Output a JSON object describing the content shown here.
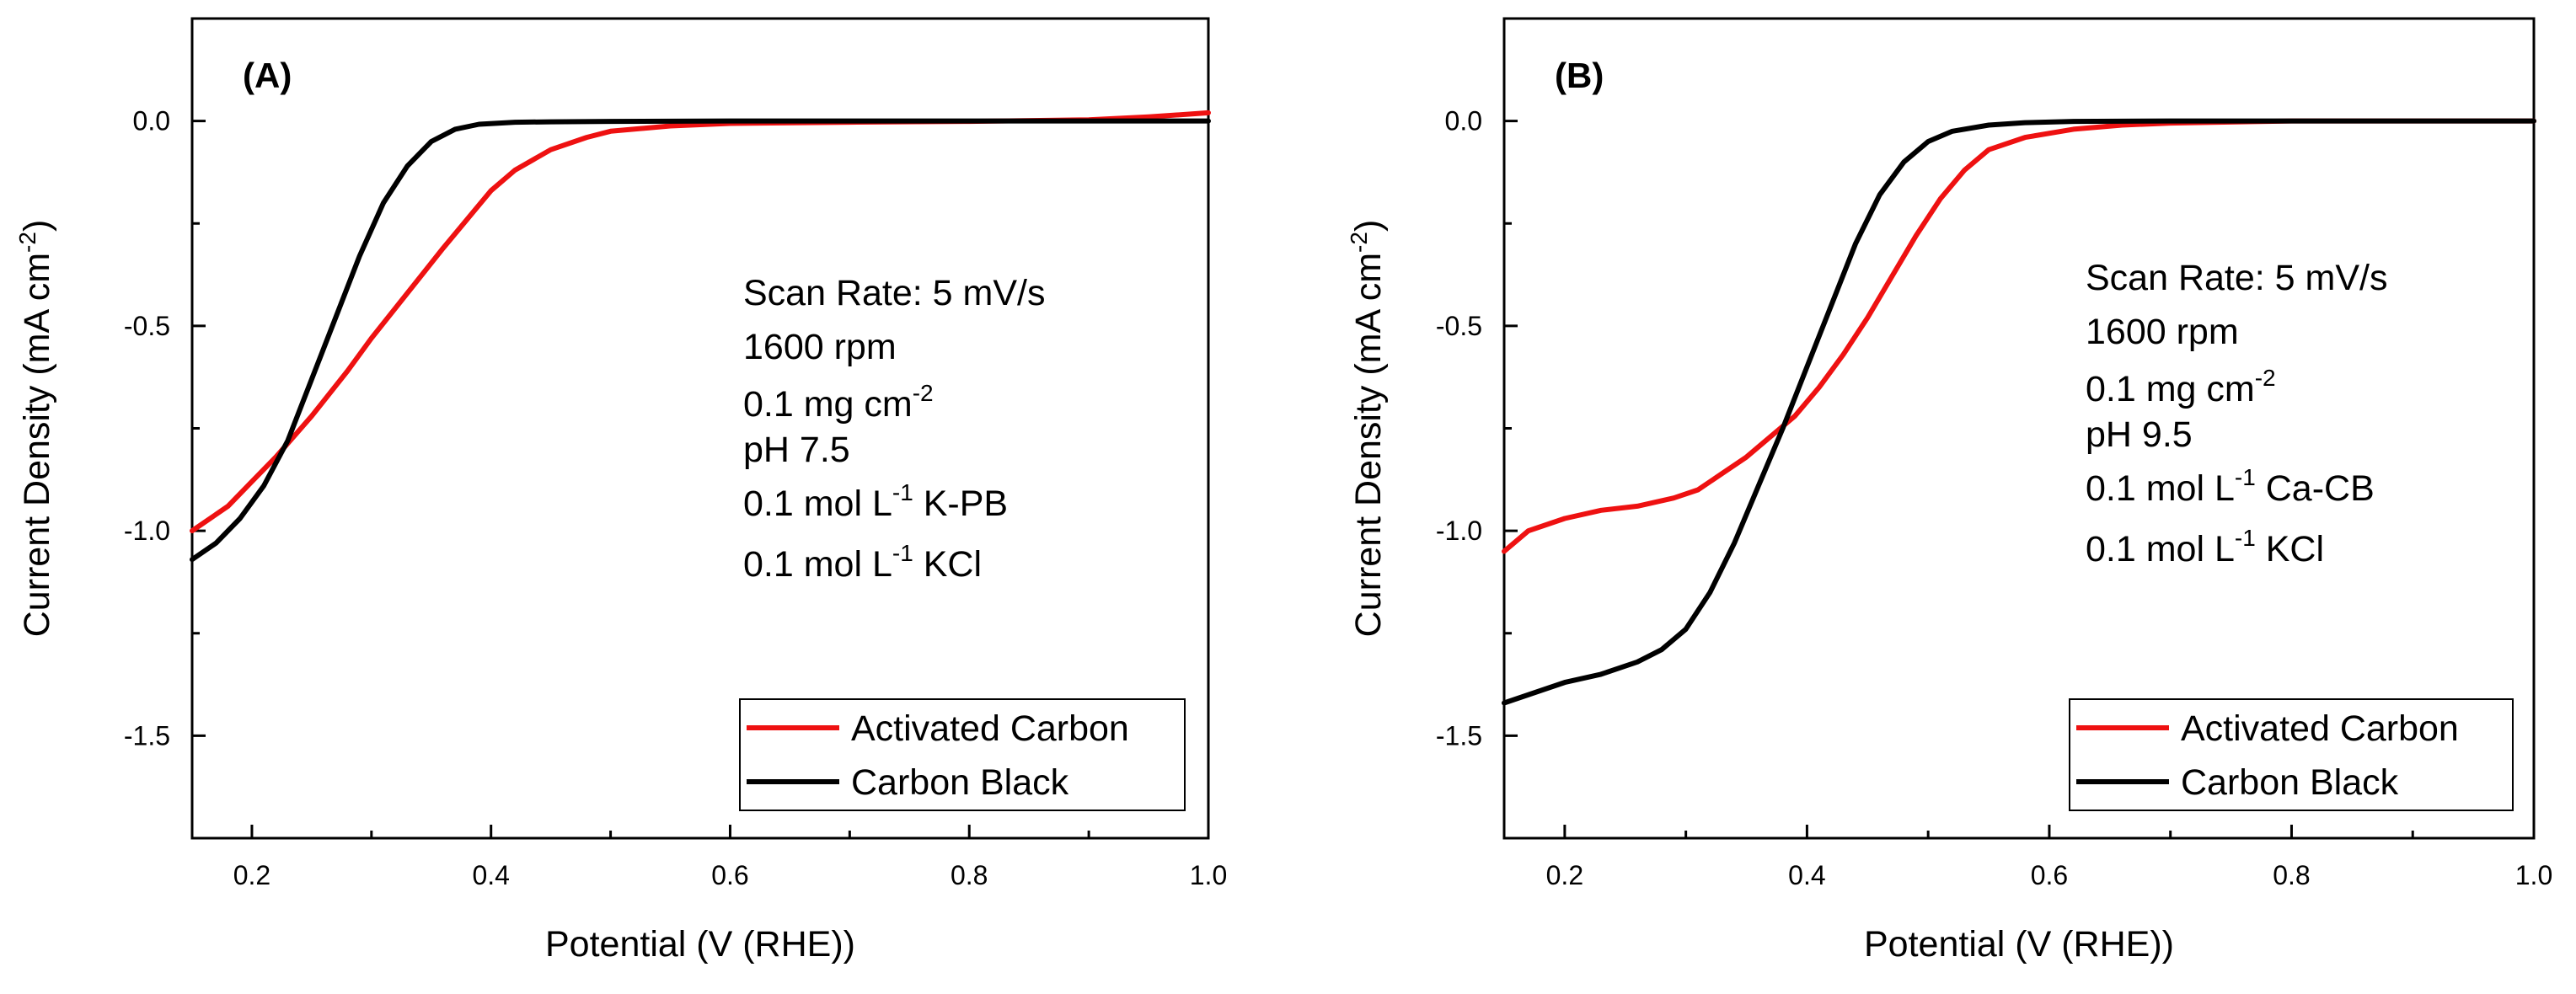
{
  "chart_data": [
    {
      "type": "line",
      "panel_label": "(A)",
      "xlabel": "Potential (V (RHE))",
      "ylabel": "Current Density (mA cm",
      "ylabel_sup": "-2",
      "ylabel_end": ")",
      "xlim": [
        0.15,
        1.0
      ],
      "ylim": [
        -1.75,
        0.25
      ],
      "xticks": [
        "0.2",
        "0.4",
        "0.6",
        "0.8",
        "1.0"
      ],
      "yticks": [
        "0.0",
        "-0.5",
        "-1.0",
        "-1.5"
      ],
      "grid": false,
      "annotations": [
        {
          "text": "Scan Rate: 5 mV/s"
        },
        {
          "text": "1600 rpm"
        },
        {
          "text": "0.1 mg cm",
          "sup": "-2"
        },
        {
          "text": "pH 7.5"
        },
        {
          "text": "0.1 mol L",
          "sup": "-1",
          "after": " K-PB"
        },
        {
          "text": "0.1 mol L",
          "sup": "-1",
          "after": "  KCl"
        }
      ],
      "legend": {
        "position": "bottom-right"
      },
      "series": [
        {
          "name": "Activated Carbon",
          "color": "#ee1111",
          "x": [
            0.15,
            0.18,
            0.2,
            0.22,
            0.25,
            0.28,
            0.3,
            0.33,
            0.36,
            0.38,
            0.4,
            0.42,
            0.45,
            0.48,
            0.5,
            0.55,
            0.6,
            0.7,
            0.8,
            0.9,
            0.95,
            1.0
          ],
          "y": [
            -1.0,
            -0.94,
            -0.88,
            -0.82,
            -0.72,
            -0.61,
            -0.53,
            -0.42,
            -0.31,
            -0.24,
            -0.17,
            -0.12,
            -0.07,
            -0.04,
            -0.025,
            -0.012,
            -0.006,
            -0.003,
            -0.001,
            0.003,
            0.01,
            0.02
          ]
        },
        {
          "name": "Carbon Black",
          "color": "#000000",
          "x": [
            0.15,
            0.17,
            0.19,
            0.21,
            0.23,
            0.25,
            0.27,
            0.29,
            0.31,
            0.33,
            0.35,
            0.37,
            0.39,
            0.42,
            0.45,
            0.5,
            0.6,
            0.7,
            0.8,
            1.0
          ],
          "y": [
            -1.07,
            -1.03,
            -0.97,
            -0.89,
            -0.78,
            -0.63,
            -0.48,
            -0.33,
            -0.2,
            -0.11,
            -0.05,
            -0.02,
            -0.008,
            -0.003,
            -0.002,
            -0.001,
            0.0,
            0.0,
            0.0,
            0.0
          ]
        }
      ]
    },
    {
      "type": "line",
      "panel_label": "(B)",
      "xlabel": "Potential (V (RHE))",
      "ylabel": "Current Density (mA cm",
      "ylabel_sup": "-2",
      "ylabel_end": ")",
      "xlim": [
        0.15,
        1.0
      ],
      "ylim": [
        -1.75,
        0.25
      ],
      "xticks": [
        "0.2",
        "0.4",
        "0.6",
        "0.8",
        "1.0"
      ],
      "yticks": [
        "0.0",
        "-0.5",
        "-1.0",
        "-1.5"
      ],
      "grid": false,
      "annotations": [
        {
          "text": "Scan Rate: 5 mV/s"
        },
        {
          "text": "1600 rpm"
        },
        {
          "text": "0.1 mg cm",
          "sup": "-2"
        },
        {
          "text": "pH 9.5"
        },
        {
          "text": "0.1 mol L",
          "sup": "-1",
          "after": " Ca-CB"
        },
        {
          "text": "0.1 mol L",
          "sup": "-1",
          "after": "  KCl"
        }
      ],
      "legend": {
        "position": "bottom-right"
      },
      "series": [
        {
          "name": "Activated Carbon",
          "color": "#ee1111",
          "x": [
            0.15,
            0.17,
            0.2,
            0.23,
            0.26,
            0.29,
            0.31,
            0.33,
            0.35,
            0.37,
            0.39,
            0.41,
            0.43,
            0.45,
            0.47,
            0.49,
            0.51,
            0.53,
            0.55,
            0.58,
            0.62,
            0.66,
            0.7,
            0.8,
            0.9,
            1.0
          ],
          "y": [
            -1.05,
            -1.0,
            -0.97,
            -0.95,
            -0.94,
            -0.92,
            -0.9,
            -0.86,
            -0.82,
            -0.77,
            -0.72,
            -0.65,
            -0.57,
            -0.48,
            -0.38,
            -0.28,
            -0.19,
            -0.12,
            -0.07,
            -0.04,
            -0.02,
            -0.01,
            -0.005,
            0.0,
            0.0,
            0.0
          ]
        },
        {
          "name": "Carbon Black",
          "color": "#000000",
          "x": [
            0.15,
            0.18,
            0.2,
            0.23,
            0.26,
            0.28,
            0.3,
            0.32,
            0.34,
            0.36,
            0.38,
            0.4,
            0.42,
            0.44,
            0.46,
            0.48,
            0.5,
            0.52,
            0.55,
            0.58,
            0.62,
            0.7,
            0.8,
            1.0
          ],
          "y": [
            -1.42,
            -1.39,
            -1.37,
            -1.35,
            -1.32,
            -1.29,
            -1.24,
            -1.15,
            -1.03,
            -0.89,
            -0.75,
            -0.6,
            -0.45,
            -0.3,
            -0.18,
            -0.1,
            -0.05,
            -0.025,
            -0.01,
            -0.004,
            -0.001,
            0.0,
            0.0,
            0.0
          ]
        }
      ]
    }
  ]
}
